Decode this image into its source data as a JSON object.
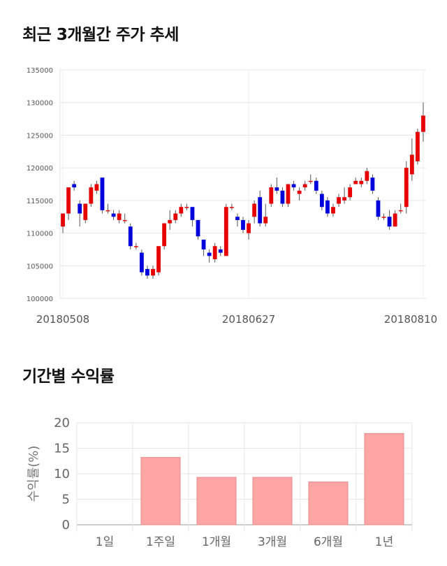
{
  "chart_data": [
    {
      "type": "candlestick",
      "title": "최근 3개월간 주가 추세",
      "ylim": [
        100000,
        135000
      ],
      "yticks": [
        100000,
        105000,
        110000,
        115000,
        120000,
        125000,
        130000,
        135000
      ],
      "xtick_labels": [
        {
          "label": "20180508",
          "index": 0
        },
        {
          "label": "20180627",
          "index": 33
        },
        {
          "label": "20180810",
          "index": 64
        }
      ],
      "colors": {
        "up": "#e60000",
        "down": "#0000dd",
        "wick": "#555555"
      },
      "candles": [
        [
          111000,
          113000,
          110000,
          113000
        ],
        [
          113000,
          117000,
          112000,
          117000
        ],
        [
          117500,
          117000,
          116500,
          118000
        ],
        [
          114500,
          113000,
          111000,
          115000
        ],
        [
          112000,
          114500,
          111500,
          114500
        ],
        [
          114500,
          117000,
          114000,
          117500
        ],
        [
          116500,
          117500,
          116000,
          118000
        ],
        [
          118500,
          113500,
          113000,
          118500
        ],
        [
          113500,
          113500,
          113000,
          114500
        ],
        [
          113000,
          112500,
          112000,
          113500
        ],
        [
          112000,
          113000,
          111500,
          113500
        ],
        [
          112000,
          112000,
          111500,
          113000
        ],
        [
          111000,
          108000,
          107500,
          111500
        ],
        [
          108000,
          108000,
          107500,
          108500
        ],
        [
          107000,
          104000,
          103500,
          107500
        ],
        [
          104500,
          103500,
          103000,
          105000
        ],
        [
          103500,
          104500,
          103000,
          105000
        ],
        [
          104000,
          108000,
          103500,
          108000
        ],
        [
          108000,
          111500,
          107500,
          111500
        ],
        [
          111500,
          112000,
          110500,
          113500
        ],
        [
          112000,
          113000,
          111500,
          113500
        ],
        [
          113000,
          114000,
          112500,
          114500
        ],
        [
          114000,
          114000,
          113500,
          114500
        ],
        [
          114000,
          112000,
          111000,
          114000
        ],
        [
          112000,
          109500,
          109000,
          112000
        ],
        [
          109000,
          107500,
          106500,
          109000
        ],
        [
          107000,
          106500,
          105500,
          107500
        ],
        [
          106000,
          108000,
          105500,
          108500
        ],
        [
          107500,
          107000,
          106500,
          108000
        ],
        [
          106500,
          114000,
          106500,
          114500
        ],
        [
          114000,
          114000,
          113500,
          114500
        ],
        [
          112500,
          112000,
          111000,
          113000
        ],
        [
          112000,
          110500,
          110000,
          112500
        ],
        [
          110000,
          111500,
          109000,
          112000
        ],
        [
          112500,
          114500,
          111500,
          115000
        ],
        [
          115500,
          111500,
          111000,
          116500
        ],
        [
          111500,
          112500,
          111000,
          114500
        ],
        [
          114500,
          117000,
          114000,
          117500
        ],
        [
          117000,
          116500,
          116000,
          118500
        ],
        [
          116500,
          114500,
          114000,
          117000
        ],
        [
          114500,
          117500,
          114000,
          117500
        ],
        [
          117500,
          117000,
          116500,
          118000
        ],
        [
          116000,
          116500,
          115000,
          117000
        ],
        [
          117000,
          117500,
          116500,
          118000
        ],
        [
          118000,
          118000,
          117500,
          119000
        ],
        [
          118000,
          116500,
          116000,
          118500
        ],
        [
          116000,
          114000,
          113500,
          116500
        ],
        [
          115000,
          113000,
          112500,
          115500
        ],
        [
          113000,
          114000,
          112500,
          114500
        ],
        [
          114500,
          115500,
          114000,
          116000
        ],
        [
          115000,
          115500,
          114500,
          117000
        ],
        [
          115500,
          117000,
          115000,
          117500
        ],
        [
          117500,
          118000,
          117500,
          118500
        ],
        [
          117500,
          118000,
          117000,
          118500
        ],
        [
          118000,
          119500,
          117500,
          120000
        ],
        [
          118500,
          116500,
          116000,
          119000
        ],
        [
          115000,
          112500,
          112000,
          115500
        ],
        [
          112500,
          112500,
          112000,
          113000
        ],
        [
          112500,
          111000,
          110500,
          113500
        ],
        [
          111000,
          113000,
          111000,
          113500
        ],
        [
          113500,
          113500,
          113000,
          114500
        ],
        [
          114000,
          120000,
          113000,
          121000
        ],
        [
          119000,
          122000,
          118000,
          124500
        ],
        [
          121000,
          125500,
          120500,
          126000
        ],
        [
          125500,
          128000,
          124000,
          130000
        ]
      ]
    },
    {
      "type": "bar",
      "title": "기간별 수익률",
      "ylabel": "수익률(%)",
      "ylim": [
        0,
        20
      ],
      "yticks": [
        0,
        5,
        10,
        15,
        20
      ],
      "categories": [
        "1일",
        "1주일",
        "1개월",
        "3개월",
        "6개월",
        "1년"
      ],
      "values": [
        0,
        13.2,
        9.3,
        9.3,
        8.4,
        17.9
      ],
      "colors": {
        "bar": "#ffa5a5",
        "bar_edge": "#e88a8a"
      }
    }
  ]
}
